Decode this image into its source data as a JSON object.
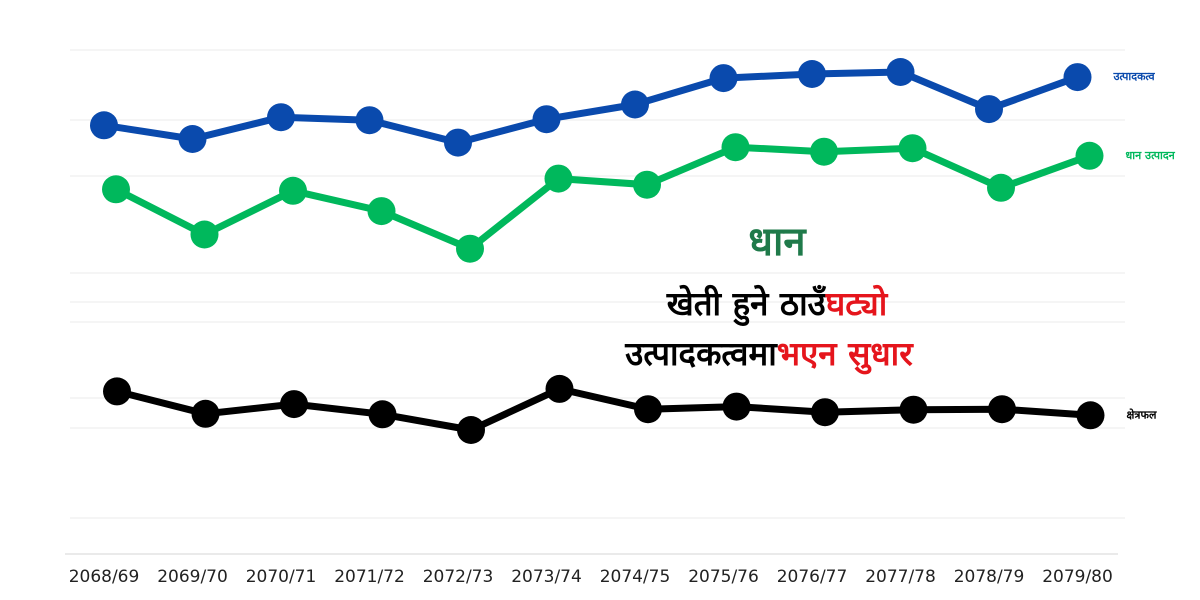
{
  "headline": {
    "main": "धान",
    "line1_part1": "खेती हुने ठाउँ ",
    "line1_part2": "घट्यो",
    "line2_part1": "उत्पादकत्वमा ",
    "line2_part2": "भएन सुधार"
  },
  "colors": {
    "productivity": "#0a4aad",
    "production": "#00b85c",
    "area": "#000000",
    "headline_main": "#1f7a4a",
    "headline_highlight": "#e5151c",
    "grid": "#ebebeb"
  },
  "chart_data": {
    "type": "line",
    "title": "",
    "xlabel": "",
    "ylabel": "",
    "categories": [
      "2068/69",
      "2069/70",
      "2070/71",
      "2071/72",
      "2072/73",
      "2073/74",
      "2074/75",
      "2075/76",
      "2076/77",
      "2077/78",
      "2078/79",
      "2079/80"
    ],
    "grid": true,
    "legend": "labels at right end of each line",
    "ylim": [
      0,
      100
    ],
    "y_axis_labels": false,
    "series": [
      {
        "key": "productivity",
        "name": "उत्पादकत्व",
        "values": [
          90.5,
          87.8,
          92.1,
          91.5,
          87.1,
          91.7,
          94.6,
          99.8,
          100.6,
          101.0,
          93.7,
          100.0
        ]
      },
      {
        "key": "production",
        "name": "धान उत्पादन",
        "values": [
          77.9,
          69.0,
          77.6,
          73.6,
          66.2,
          80.0,
          78.8,
          86.2,
          85.3,
          86.0,
          78.2,
          84.5
        ]
      },
      {
        "key": "area",
        "name": "क्षेत्रफल",
        "values": [
          38.1,
          33.7,
          35.6,
          33.6,
          30.5,
          38.6,
          34.6,
          35.1,
          34.0,
          34.5,
          34.6,
          33.4
        ]
      }
    ]
  }
}
